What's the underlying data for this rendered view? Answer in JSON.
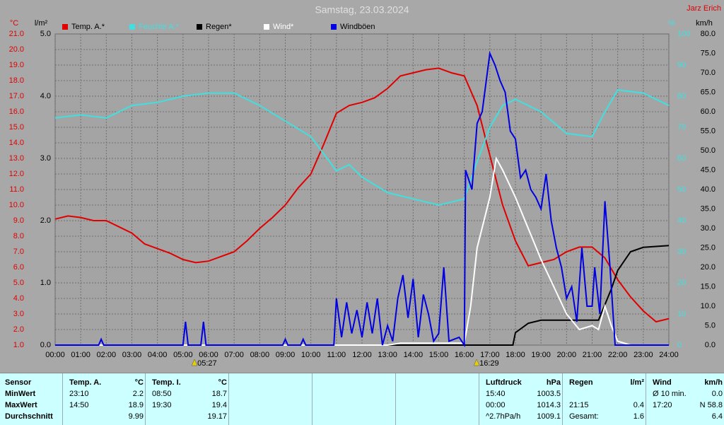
{
  "chart_data": {
    "type": "line",
    "title": "Samstag, 23.03.2024",
    "station": "Jarz Erich",
    "xlim": [
      0,
      24
    ],
    "xticks": [
      {
        "value": 0,
        "label": "00:00"
      },
      {
        "value": 1,
        "label": "01:00"
      },
      {
        "value": 2,
        "label": "02:00"
      },
      {
        "value": 3,
        "label": "03:00"
      },
      {
        "value": 4,
        "label": "04:00"
      },
      {
        "value": 5,
        "label": "05:00"
      },
      {
        "value": 6,
        "label": "06:00"
      },
      {
        "value": 7,
        "label": "07:00"
      },
      {
        "value": 8,
        "label": "08:00"
      },
      {
        "value": 9,
        "label": "09:00"
      },
      {
        "value": 10,
        "label": "10:00"
      },
      {
        "value": 11,
        "label": "11:00"
      },
      {
        "value": 12,
        "label": "12:00"
      },
      {
        "value": 13,
        "label": "13:00"
      },
      {
        "value": 14,
        "label": "14:00"
      },
      {
        "value": 15,
        "label": "15:00"
      },
      {
        "value": 16,
        "label": "16:00"
      },
      {
        "value": 17,
        "label": "17:00"
      },
      {
        "value": 18,
        "label": "18:00"
      },
      {
        "value": 19,
        "label": "19:00"
      },
      {
        "value": 20,
        "label": "20:00"
      },
      {
        "value": 21,
        "label": "21:00"
      },
      {
        "value": 22,
        "label": "22:00"
      },
      {
        "value": 23,
        "label": "23:00"
      },
      {
        "value": 24,
        "label": "24:00"
      }
    ],
    "grid": true,
    "axes": [
      {
        "label": "°C",
        "color": "#e00000",
        "ylim": [
          1,
          21
        ],
        "yticks": [
          {
            "value": 1,
            "label": "1.0"
          },
          {
            "value": 2,
            "label": "2.0"
          },
          {
            "value": 3,
            "label": "3.0"
          },
          {
            "value": 4,
            "label": "4.0"
          },
          {
            "value": 5,
            "label": "5.0"
          },
          {
            "value": 6,
            "label": "6.0"
          },
          {
            "value": 7,
            "label": "7.0"
          },
          {
            "value": 8,
            "label": "8.0"
          },
          {
            "value": 9,
            "label": "9.0"
          },
          {
            "value": 10,
            "label": "10.0"
          },
          {
            "value": 11,
            "label": "11.0"
          },
          {
            "value": 12,
            "label": "12.0"
          },
          {
            "value": 13,
            "label": "13.0"
          },
          {
            "value": 14,
            "label": "14.0"
          },
          {
            "value": 15,
            "label": "15.0"
          },
          {
            "value": 16,
            "label": "16.0"
          },
          {
            "value": 17,
            "label": "17.0"
          },
          {
            "value": 18,
            "label": "18.0"
          },
          {
            "value": 19,
            "label": "19.0"
          },
          {
            "value": 20,
            "label": "20.0"
          },
          {
            "value": 21,
            "label": "21.0"
          }
        ]
      },
      {
        "label": "l/m²",
        "color": "#000000",
        "ylim": [
          0,
          5
        ],
        "yticks": [
          {
            "value": 0,
            "label": "0.0"
          },
          {
            "value": 1,
            "label": "1.0"
          },
          {
            "value": 2,
            "label": "2.0"
          },
          {
            "value": 3,
            "label": "3.0"
          },
          {
            "value": 4,
            "label": "4.0"
          },
          {
            "value": 5,
            "label": "5.0"
          }
        ]
      },
      {
        "label": "%",
        "color": "#40e0e0",
        "ylim": [
          0,
          100
        ],
        "yticks": [
          0,
          10,
          20,
          30,
          40,
          50,
          60,
          70,
          80,
          90,
          100
        ]
      },
      {
        "label": "km/h",
        "color": "#000000",
        "ylim": [
          0,
          80
        ],
        "yticks": [
          {
            "value": 0,
            "label": "0.0"
          },
          {
            "value": 5,
            "label": "5.0"
          },
          {
            "value": 10,
            "label": "10.0"
          },
          {
            "value": 15,
            "label": "15.0"
          },
          {
            "value": 20,
            "label": "20.0"
          },
          {
            "value": 25,
            "label": "25.0"
          },
          {
            "value": 30,
            "label": "30.0"
          },
          {
            "value": 35,
            "label": "35.0"
          },
          {
            "value": 40,
            "label": "40.0"
          },
          {
            "value": 45,
            "label": "45.0"
          },
          {
            "value": 50,
            "label": "50.0"
          },
          {
            "value": 55,
            "label": "55.0"
          },
          {
            "value": 60,
            "label": "60.0"
          },
          {
            "value": 65,
            "label": "65.0"
          },
          {
            "value": 70,
            "label": "70.0"
          },
          {
            "value": 75,
            "label": "75.0"
          },
          {
            "value": 80,
            "label": "80.0"
          }
        ]
      }
    ],
    "series": [
      {
        "name": "Temp. A.*",
        "color": "#e00000",
        "axis": 0,
        "x": [
          0,
          0.5,
          1,
          1.5,
          2,
          2.5,
          3,
          3.5,
          4,
          4.5,
          5,
          5.5,
          6,
          6.5,
          7,
          7.5,
          8,
          8.5,
          9,
          9.5,
          10,
          10.5,
          11,
          11.5,
          12,
          12.5,
          13,
          13.5,
          14,
          14.5,
          15,
          15.5,
          16,
          16.5,
          17,
          17.5,
          18,
          18.5,
          19,
          19.5,
          20,
          20.5,
          21,
          21.5,
          22,
          22.5,
          23,
          23.5,
          24
        ],
        "values": [
          9.1,
          9.3,
          9.2,
          9.0,
          9.0,
          8.6,
          8.2,
          7.5,
          7.2,
          6.9,
          6.5,
          6.3,
          6.4,
          6.7,
          7.0,
          7.7,
          8.5,
          9.2,
          10.0,
          11.1,
          12.0,
          13.9,
          15.9,
          16.4,
          16.6,
          16.9,
          17.5,
          18.3,
          18.5,
          18.7,
          18.8,
          18.5,
          18.3,
          16.4,
          13.2,
          10.0,
          7.7,
          6.1,
          6.3,
          6.5,
          7.0,
          7.3,
          7.3,
          6.6,
          5.2,
          4.1,
          3.2,
          2.5,
          2.7
        ]
      },
      {
        "name": "Feuchte A.*",
        "color": "#40e0e0",
        "axis": 2,
        "x": [
          0,
          1,
          2,
          3,
          4,
          5,
          6,
          7,
          8,
          9,
          10,
          11,
          11.5,
          12,
          13,
          14,
          15,
          16,
          16.5,
          17,
          17.5,
          18,
          19,
          20,
          21,
          21.5,
          22,
          23,
          24
        ],
        "values": [
          73,
          74,
          73,
          77,
          78,
          80,
          81,
          81,
          77,
          72,
          67,
          56,
          58,
          54,
          49,
          47,
          45,
          47,
          59,
          70,
          77,
          79,
          75,
          68,
          67,
          75,
          82,
          81,
          77
        ]
      },
      {
        "name": "Regen*",
        "color": "#000000",
        "axis": 1,
        "x": [
          0,
          17.9,
          18,
          18.5,
          19,
          21.25,
          21.75,
          22,
          22.5,
          23,
          24
        ],
        "values": [
          0,
          0,
          0.2,
          0.35,
          0.4,
          0.4,
          0.9,
          1.2,
          1.5,
          1.57,
          1.6
        ]
      },
      {
        "name": "Wind*",
        "color": "#ffffff",
        "axis": 3,
        "x": [
          0,
          13,
          13.5,
          15.5,
          16,
          16.25,
          16.5,
          17,
          17.25,
          17.5,
          18,
          18.5,
          19,
          19.5,
          20,
          20.5,
          21,
          21.25,
          21.5,
          21.75,
          22,
          22.5,
          24
        ],
        "values": [
          0,
          0,
          0.5,
          0.5,
          0.5,
          10,
          25,
          38,
          48,
          45,
          38,
          30,
          22,
          15,
          8,
          4,
          5,
          4,
          10,
          5,
          1,
          0,
          0
        ]
      },
      {
        "name": "Windböen",
        "color": "#0000e0",
        "axis": 3,
        "x": [
          0,
          1.7,
          1.8,
          1.9,
          5,
          5.1,
          5.2,
          5.7,
          5.8,
          5.9,
          8.9,
          9,
          9.1,
          9.6,
          9.7,
          9.8,
          10.9,
          11,
          11.2,
          11.4,
          11.6,
          11.8,
          12,
          12.2,
          12.4,
          12.6,
          12.8,
          13,
          13.2,
          13.4,
          13.6,
          13.8,
          14,
          14.2,
          14.4,
          14.6,
          14.8,
          15,
          15.2,
          15.4,
          15.8,
          16,
          16.05,
          16.3,
          16.5,
          16.7,
          16.9,
          17,
          17.2,
          17.4,
          17.6,
          17.8,
          18,
          18.2,
          18.4,
          18.6,
          18.8,
          19,
          19.2,
          19.4,
          19.6,
          19.8,
          20,
          20.2,
          20.4,
          20.6,
          20.8,
          21,
          21.1,
          21.3,
          21.5,
          21.7,
          21.9,
          24
        ],
        "values": [
          0,
          0,
          1.5,
          0,
          0,
          6,
          0,
          0,
          6,
          0,
          0,
          1.5,
          0,
          0,
          1.5,
          0,
          0,
          12,
          2,
          11,
          3,
          9,
          2,
          11,
          3,
          12,
          0,
          5,
          1,
          12,
          18,
          7,
          17,
          2,
          13,
          8,
          1,
          3,
          20,
          1,
          2,
          0,
          45,
          40,
          57,
          60,
          70,
          75,
          72,
          68,
          65,
          55,
          53,
          43,
          45,
          40,
          38,
          35,
          44,
          32,
          25,
          20,
          12,
          15,
          6,
          25,
          10,
          10,
          20,
          8,
          37,
          20,
          0,
          0
        ]
      }
    ],
    "annotations": [
      {
        "x": 5.45,
        "text": "05:27"
      },
      {
        "x": 16.4833,
        "text": "16:29"
      }
    ]
  },
  "table": {
    "header": [
      [
        "Sensor"
      ],
      [
        "Temp. A.",
        "°C"
      ],
      [
        "Temp. I.",
        "°C"
      ],
      null,
      null,
      null,
      [
        "Luftdruck",
        "hPa"
      ],
      [
        "Regen",
        "l/m²"
      ],
      [
        "Wind",
        "km/h"
      ]
    ],
    "rows": [
      [
        [
          "MinWert"
        ],
        [
          "23:10",
          "2.2"
        ],
        [
          "08:50",
          "18.7"
        ],
        null,
        null,
        null,
        [
          "15:40",
          "1003.5"
        ],
        null,
        [
          "Ø 10 min.",
          "0.0"
        ]
      ],
      [
        [
          "MaxWert"
        ],
        [
          "14:50",
          "18.9"
        ],
        [
          "19:30",
          "19.4"
        ],
        null,
        null,
        null,
        [
          "00:00",
          "1014.3"
        ],
        [
          "21:15",
          "0.4"
        ],
        [
          "17:20",
          "N 58.8"
        ]
      ],
      [
        [
          "Durchschnitt"
        ],
        [
          null,
          "9.99"
        ],
        [
          null,
          "19.17"
        ],
        null,
        null,
        null,
        [
          "^2.7hPa/h",
          "1009.1"
        ],
        [
          "Gesamt:",
          "1.6"
        ],
        [
          null,
          "6.4"
        ]
      ]
    ]
  }
}
